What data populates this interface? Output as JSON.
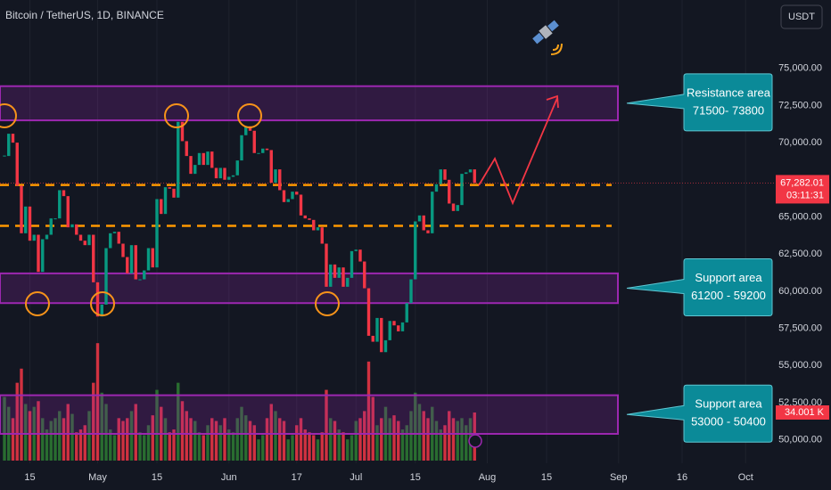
{
  "chart_data": {
    "type": "candlestick",
    "title": "Bitcoin / TetherUS, 1D, BINANCE",
    "currency": "USDT",
    "x": [
      "Apr 9",
      "Apr 10",
      "Apr 11",
      "Apr 12",
      "Apr 13",
      "Apr 14",
      "Apr 15",
      "Apr 16",
      "Apr 17",
      "Apr 18",
      "Apr 19",
      "Apr 20",
      "Apr 21",
      "Apr 22",
      "Apr 23",
      "Apr 24",
      "Apr 25",
      "Apr 26",
      "Apr 27",
      "Apr 28",
      "Apr 29",
      "Apr 30",
      "May 1",
      "May 2",
      "May 3",
      "May 4",
      "May 5",
      "May 6",
      "May 7",
      "May 8",
      "May 9",
      "May 10",
      "May 11",
      "May 12",
      "May 13",
      "May 14",
      "May 15",
      "May 16",
      "May 17",
      "May 18",
      "May 19",
      "May 20",
      "May 21",
      "May 22",
      "May 23",
      "May 24",
      "May 25",
      "May 26",
      "May 27",
      "May 28",
      "May 29",
      "May 30",
      "May 31",
      "Jun 1",
      "Jun 2",
      "Jun 3",
      "Jun 4",
      "Jun 5",
      "Jun 6",
      "Jun 7",
      "Jun 8",
      "Jun 9",
      "Jun 10",
      "Jun 11",
      "Jun 12",
      "Jun 13",
      "Jun 14",
      "Jun 15",
      "Jun 16",
      "Jun 17",
      "Jun 18",
      "Jun 19",
      "Jun 20",
      "Jun 21",
      "Jun 22",
      "Jun 23",
      "Jun 24",
      "Jun 25",
      "Jun 26",
      "Jun 27",
      "Jun 28",
      "Jun 29",
      "Jun 30",
      "Jul 1",
      "Jul 2",
      "Jul 3",
      "Jul 4",
      "Jul 5",
      "Jul 6",
      "Jul 7",
      "Jul 8",
      "Jul 9",
      "Jul 10",
      "Jul 11",
      "Jul 12",
      "Jul 13",
      "Jul 14",
      "Jul 15",
      "Jul 16",
      "Jul 17",
      "Jul 18",
      "Jul 19",
      "Jul 20",
      "Jul 21",
      "Jul 22",
      "Jul 23",
      "Jul 24",
      "Jul 25",
      "Jul 26",
      "Jul 27",
      "Jul 28",
      "Jul 29"
    ],
    "close": [
      69100,
      70600,
      70000,
      67100,
      63900,
      65700,
      63400,
      63800,
      61300,
      63500,
      63800,
      64900,
      64900,
      66800,
      66400,
      64300,
      64500,
      63800,
      63400,
      63100,
      63800,
      60600,
      58300,
      59100,
      62900,
      63900,
      64000,
      63200,
      62300,
      61200,
      63100,
      60800,
      60800,
      61400,
      62900,
      61600,
      66200,
      65200,
      67000,
      66900,
      66300,
      71400,
      70100,
      69100,
      67900,
      68500,
      69300,
      68500,
      69400,
      68300,
      67600,
      68300,
      67500,
      67700,
      67800,
      68800,
      70500,
      71100,
      70800,
      69300,
      69300,
      69600,
      69500,
      67300,
      68200,
      66800,
      66000,
      66200,
      66700,
      66500,
      65100,
      64900,
      64800,
      64100,
      64300,
      63200,
      60300,
      61800,
      60900,
      61600,
      60300,
      60900,
      62700,
      62800,
      62000,
      60200,
      57000,
      56600,
      58200,
      55900,
      56700,
      58000,
      57700,
      57300,
      57900,
      59200,
      60800,
      64700,
      65100,
      64100,
      63900,
      66700,
      67200,
      68200,
      67500,
      65900,
      65400,
      65800,
      67900,
      68000,
      68200,
      67282.01
    ],
    "volume": [
      45,
      38,
      30,
      55,
      65,
      40,
      35,
      38,
      42,
      30,
      22,
      28,
      30,
      35,
      30,
      40,
      33,
      20,
      22,
      25,
      35,
      55,
      83,
      48,
      40,
      22,
      18,
      30,
      28,
      30,
      35,
      40,
      20,
      18,
      25,
      32,
      50,
      38,
      30,
      20,
      22,
      55,
      42,
      35,
      30,
      28,
      20,
      18,
      25,
      30,
      28,
      25,
      30,
      22,
      20,
      30,
      38,
      32,
      28,
      25,
      15,
      18,
      30,
      40,
      35,
      30,
      28,
      15,
      18,
      25,
      30,
      22,
      20,
      18,
      15,
      20,
      50,
      30,
      28,
      22,
      20,
      15,
      18,
      28,
      30,
      35,
      70,
      45,
      25,
      30,
      38,
      30,
      32,
      28,
      22,
      25,
      35,
      48,
      40,
      35,
      30,
      38,
      28,
      22,
      25,
      35,
      30,
      28,
      30,
      25,
      30,
      34.001
    ],
    "last_volume_label": "34.001 K",
    "last_price_label": "67,282.01",
    "countdown": "03:11:31",
    "ylim": [
      48600,
      79600
    ],
    "yticks": [
      {
        "value": 50000,
        "label": "50,000.00"
      },
      {
        "value": 52500,
        "label": "52,500.00"
      },
      {
        "value": 55000,
        "label": "55,000.00"
      },
      {
        "value": 57500,
        "label": "57,500.00"
      },
      {
        "value": 60000,
        "label": "60,000.00"
      },
      {
        "value": 62500,
        "label": "62,500.00"
      },
      {
        "value": 65000,
        "label": "65,000.00"
      },
      {
        "value": 67500,
        "label": "67,500.00"
      },
      {
        "value": 70000,
        "label": "70,000.00"
      },
      {
        "value": 72500,
        "label": "72,500.00"
      },
      {
        "value": 75000,
        "label": "75,000.00"
      }
    ],
    "xticks": [
      {
        "value": 6,
        "label": "15"
      },
      {
        "value": 22,
        "label": "May"
      },
      {
        "value": 36,
        "label": "15"
      },
      {
        "value": 53,
        "label": "Jun"
      },
      {
        "value": 69,
        "label": "17"
      },
      {
        "value": 83,
        "label": "Jul"
      },
      {
        "value": 97,
        "label": "15"
      },
      {
        "value": 114,
        "label": "Aug"
      },
      {
        "value": 128,
        "label": "15"
      },
      {
        "value": 145,
        "label": "Sep"
      },
      {
        "value": 160,
        "label": "16"
      },
      {
        "value": 175,
        "label": "Oct"
      }
    ],
    "levels": [
      67150,
      64400
    ],
    "zones": [
      {
        "low": 71500,
        "high": 73800,
        "title": "Resistance area",
        "range": "71500- 73800"
      },
      {
        "low": 59200,
        "high": 61200,
        "title": "Support area",
        "range": "61200 - 59200"
      },
      {
        "low": 50400,
        "high": 53000,
        "title": "Support area",
        "range": "53000 - 50400"
      }
    ],
    "grid": true
  }
}
